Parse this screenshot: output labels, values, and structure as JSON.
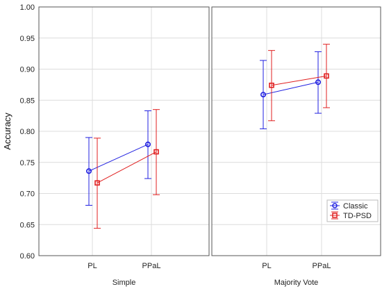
{
  "chart_data": {
    "type": "line",
    "ylabel": "Accuracy",
    "ylim": [
      0.6,
      1.0
    ],
    "yticks": [
      "0.60",
      "0.65",
      "0.70",
      "0.75",
      "0.80",
      "0.85",
      "0.90",
      "0.95",
      "1.00"
    ],
    "grid": true,
    "legend_position": "bottom-right",
    "series_styles": [
      {
        "name": "Classic",
        "color": "#1f1fe0",
        "marker": "circle"
      },
      {
        "name": "TD-PSD",
        "color": "#e01f1f",
        "marker": "square"
      }
    ],
    "panels": [
      {
        "label": "Simple",
        "categories": [
          "PL",
          "PPaL"
        ],
        "series": [
          {
            "name": "Classic",
            "values": [
              0.736,
              0.779
            ],
            "lower": [
              0.681,
              0.724
            ],
            "upper": [
              0.79,
              0.833
            ]
          },
          {
            "name": "TD-PSD",
            "values": [
              0.717,
              0.767
            ],
            "lower": [
              0.644,
              0.698
            ],
            "upper": [
              0.789,
              0.835
            ]
          }
        ]
      },
      {
        "label": "Majority Vote",
        "categories": [
          "PL",
          "PPaL"
        ],
        "series": [
          {
            "name": "Classic",
            "values": [
              0.859,
              0.879
            ],
            "lower": [
              0.804,
              0.829
            ],
            "upper": [
              0.914,
              0.928
            ]
          },
          {
            "name": "TD-PSD",
            "values": [
              0.874,
              0.889
            ],
            "lower": [
              0.817,
              0.838
            ],
            "upper": [
              0.93,
              0.94
            ]
          }
        ]
      }
    ]
  }
}
